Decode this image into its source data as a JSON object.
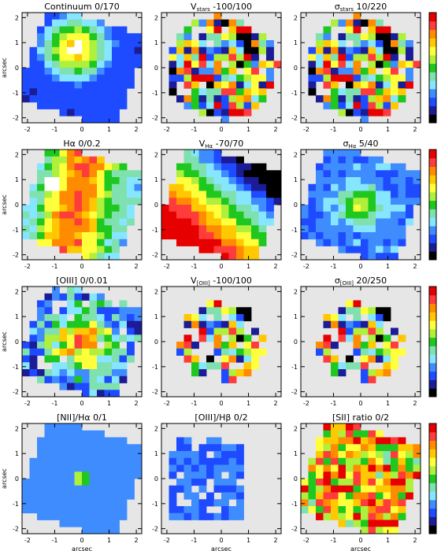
{
  "figure": {
    "x_axis_label": "arcsec",
    "y_axis_label": "arcsec",
    "x_ticks": [
      "-2",
      "-1",
      "0",
      "1",
      "2"
    ],
    "y_ticks": [
      "2",
      "1",
      "0",
      "-1",
      "-2"
    ],
    "colorbar_colors": [
      "#000000",
      "#1c1c96",
      "#1e4bff",
      "#3f8cff",
      "#87e6ff",
      "#7fe0b0",
      "#1ec81e",
      "#aef03c",
      "#ffff3c",
      "#ffc800",
      "#ff8c00",
      "#ff3c3c",
      "#e60000"
    ],
    "panel_bg_color": "#e6e6e6"
  },
  "rows": [
    {
      "panels": [
        {
          "title": "Continuum",
          "range": "0/170",
          "show_ylabel": true,
          "show_xlabel": false,
          "pattern": "continuum"
        },
        {
          "title": "V",
          "title_sub": "stars",
          "range": "-100/100",
          "show_ylabel": false,
          "show_xlabel": false,
          "pattern": "vstars"
        },
        {
          "title": "σ",
          "title_sub": "stars",
          "range": "10/220",
          "show_ylabel": false,
          "show_xlabel": false,
          "pattern": "sigstars"
        }
      ]
    },
    {
      "panels": [
        {
          "title": "Hα",
          "range": "0/0.2",
          "show_ylabel": true,
          "show_xlabel": false,
          "pattern": "ha"
        },
        {
          "title": "V",
          "title_sub": "Hα",
          "range": "-70/70",
          "show_ylabel": false,
          "show_xlabel": false,
          "pattern": "vha"
        },
        {
          "title": "σ",
          "title_sub": "Hα",
          "range": "5/40",
          "show_ylabel": false,
          "show_xlabel": false,
          "pattern": "sigha"
        }
      ]
    },
    {
      "panels": [
        {
          "title": "[OIII]",
          "range": "0/0.01",
          "show_ylabel": true,
          "show_xlabel": false,
          "pattern": "oiii"
        },
        {
          "title": "V",
          "title_sub": "[OIII]",
          "range": "-100/100",
          "show_ylabel": false,
          "show_xlabel": false,
          "pattern": "voiii"
        },
        {
          "title": "σ",
          "title_sub": "[OIII]",
          "range": "20/250",
          "show_ylabel": false,
          "show_xlabel": false,
          "pattern": "sigoiii"
        }
      ]
    },
    {
      "panels": [
        {
          "title": "[NII]/Hα",
          "range": "0/1",
          "show_ylabel": true,
          "show_xlabel": true,
          "pattern": "nii"
        },
        {
          "title": "[OIII]/Hβ",
          "range": "0/2",
          "show_ylabel": false,
          "show_xlabel": true,
          "pattern": "oiiihb"
        },
        {
          "title": "[SII] ratio",
          "range": "0/2",
          "show_ylabel": false,
          "show_xlabel": true,
          "pattern": "sii"
        }
      ]
    }
  ]
}
